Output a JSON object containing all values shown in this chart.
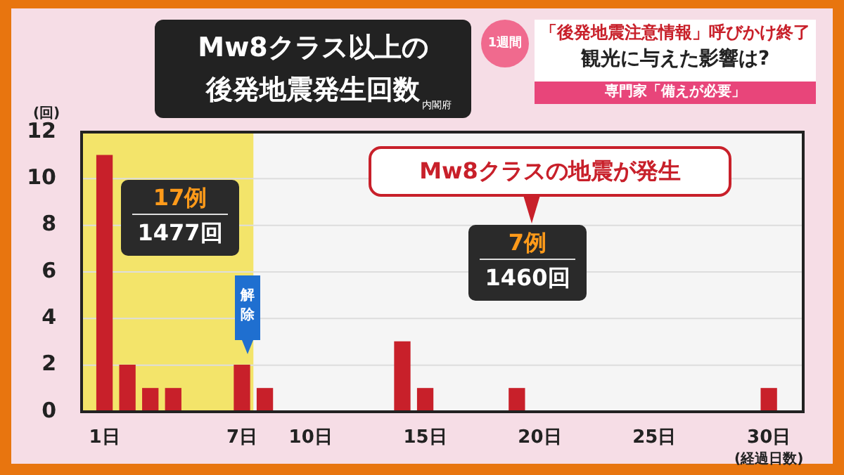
{
  "chart_data": {
    "type": "bar",
    "title": "Mw8クラス以上の後発地震発生回数",
    "xlabel": "(経過日数)",
    "ylabel": "(回)",
    "x": [
      1,
      2,
      3,
      4,
      7,
      8,
      14,
      15,
      19,
      30
    ],
    "values": [
      11,
      2,
      1,
      1,
      2,
      1,
      3,
      1,
      1,
      1
    ],
    "color": "#c8202a",
    "xlim": [
      0,
      31.5
    ],
    "xticks": [
      {
        "value": 1,
        "label": "1日"
      },
      {
        "value": 7,
        "label": "7日"
      },
      {
        "value": 10,
        "label": "10日"
      },
      {
        "value": 15,
        "label": "15日"
      },
      {
        "value": 20,
        "label": "20日"
      },
      {
        "value": 25,
        "label": "25日"
      },
      {
        "value": 30,
        "label": "30日"
      }
    ],
    "ylim": [
      0,
      12
    ],
    "yticks": [
      0,
      2,
      4,
      6,
      8,
      10,
      12
    ],
    "grid": "y",
    "bands": [
      {
        "axis": "x",
        "from": 0,
        "to": 7.5,
        "color": "#f3e46a"
      }
    ],
    "annotations": [
      "内閣府",
      "1週間",
      "「後発地震注意情報」呼びかけ終了",
      "観光に与えた影響は?",
      "専門家「備えが必要」",
      "17例",
      "1477回",
      "解除",
      "Mw8クラスの地震が発生",
      "7例",
      "1460回"
    ]
  }
}
